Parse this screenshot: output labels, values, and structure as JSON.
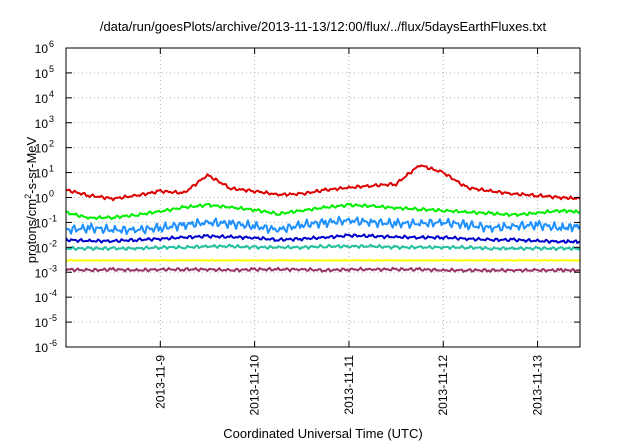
{
  "chart_data": {
    "type": "line",
    "title": "/data/run/goesPlots/archive/2013-11-13/12:00/flux/../flux/5daysEarthFluxes.txt",
    "xlabel": "Coordinated Universal Time (UTC)",
    "ylabel": "protons/cm²-s-sr-MeV",
    "ylabel_parts": {
      "pre": "protons/cm",
      "sup": "2",
      "post": "-s-sr-MeV"
    },
    "x_ticks": [
      "2013-11-9",
      "2013-11-10",
      "2013-11-11",
      "2013-11-12",
      "2013-11-13"
    ],
    "x_tick_positions_days": [
      1,
      2,
      3,
      4,
      5
    ],
    "xlim_days": [
      0,
      5.45
    ],
    "y_scale": "log",
    "ylim_exp": [
      -6,
      6
    ],
    "y_ticks": [
      {
        "base": "10",
        "exp": "-6"
      },
      {
        "base": "10",
        "exp": "-5"
      },
      {
        "base": "10",
        "exp": "-4"
      },
      {
        "base": "10",
        "exp": "-3"
      },
      {
        "base": "10",
        "exp": "-2"
      },
      {
        "base": "10",
        "exp": "-1"
      },
      {
        "base": "10",
        "exp": "0"
      },
      {
        "base": "10",
        "exp": "1"
      },
      {
        "base": "10",
        "exp": "2"
      },
      {
        "base": "10",
        "exp": "3"
      },
      {
        "base": "10",
        "exp": "4"
      },
      {
        "base": "10",
        "exp": "5"
      },
      {
        "base": "10",
        "exp": "6"
      }
    ],
    "grid": true,
    "x_days": [
      0.0,
      0.25,
      0.5,
      0.75,
      1.0,
      1.25,
      1.5,
      1.75,
      2.0,
      2.25,
      2.5,
      2.75,
      3.0,
      3.25,
      3.5,
      3.75,
      4.0,
      4.25,
      4.5,
      4.75,
      5.0,
      5.25,
      5.45
    ],
    "series": [
      {
        "color": "#dd0000",
        "values": [
          2.0,
          1.2,
          0.9,
          1.2,
          1.8,
          1.5,
          8.0,
          2.3,
          1.8,
          1.3,
          1.4,
          2.0,
          2.5,
          3.0,
          3.5,
          20.0,
          10.0,
          2.5,
          1.8,
          1.4,
          1.2,
          1.0,
          0.9
        ]
      },
      {
        "color": "#00ee00",
        "values": [
          0.25,
          0.15,
          0.16,
          0.2,
          0.28,
          0.4,
          0.5,
          0.4,
          0.32,
          0.22,
          0.3,
          0.4,
          0.5,
          0.45,
          0.38,
          0.34,
          0.3,
          0.26,
          0.23,
          0.2,
          0.24,
          0.3,
          0.26
        ]
      },
      {
        "color": "#1e90ff",
        "values": [
          0.05,
          0.06,
          0.05,
          0.05,
          0.06,
          0.08,
          0.1,
          0.09,
          0.07,
          0.05,
          0.08,
          0.1,
          0.12,
          0.1,
          0.09,
          0.09,
          0.1,
          0.08,
          0.06,
          0.07,
          0.08,
          0.06,
          0.07
        ]
      },
      {
        "color": "#0000cc",
        "values": [
          0.02,
          0.018,
          0.018,
          0.02,
          0.022,
          0.025,
          0.028,
          0.026,
          0.024,
          0.02,
          0.022,
          0.025,
          0.03,
          0.028,
          0.026,
          0.025,
          0.025,
          0.022,
          0.02,
          0.02,
          0.018,
          0.017,
          0.017
        ]
      },
      {
        "color": "#20c0a0",
        "values": [
          0.009,
          0.009,
          0.009,
          0.009,
          0.01,
          0.01,
          0.011,
          0.011,
          0.01,
          0.01,
          0.01,
          0.011,
          0.011,
          0.011,
          0.01,
          0.01,
          0.01,
          0.01,
          0.009,
          0.009,
          0.009,
          0.009,
          0.009
        ]
      },
      {
        "color": "#ffff00",
        "values": [
          0.003,
          0.003,
          0.003,
          0.003,
          0.003,
          0.003,
          0.003,
          0.003,
          0.003,
          0.003,
          0.003,
          0.003,
          0.003,
          0.003,
          0.003,
          0.003,
          0.003,
          0.003,
          0.003,
          0.003,
          0.003,
          0.003,
          0.003
        ]
      },
      {
        "color": "#993366",
        "values": [
          0.0013,
          0.0012,
          0.0013,
          0.0012,
          0.0013,
          0.0013,
          0.0013,
          0.0012,
          0.0013,
          0.0013,
          0.0013,
          0.0012,
          0.0013,
          0.0013,
          0.0013,
          0.0013,
          0.0012,
          0.0012,
          0.0012,
          0.0012,
          0.0012,
          0.0012,
          0.0012
        ]
      }
    ]
  }
}
